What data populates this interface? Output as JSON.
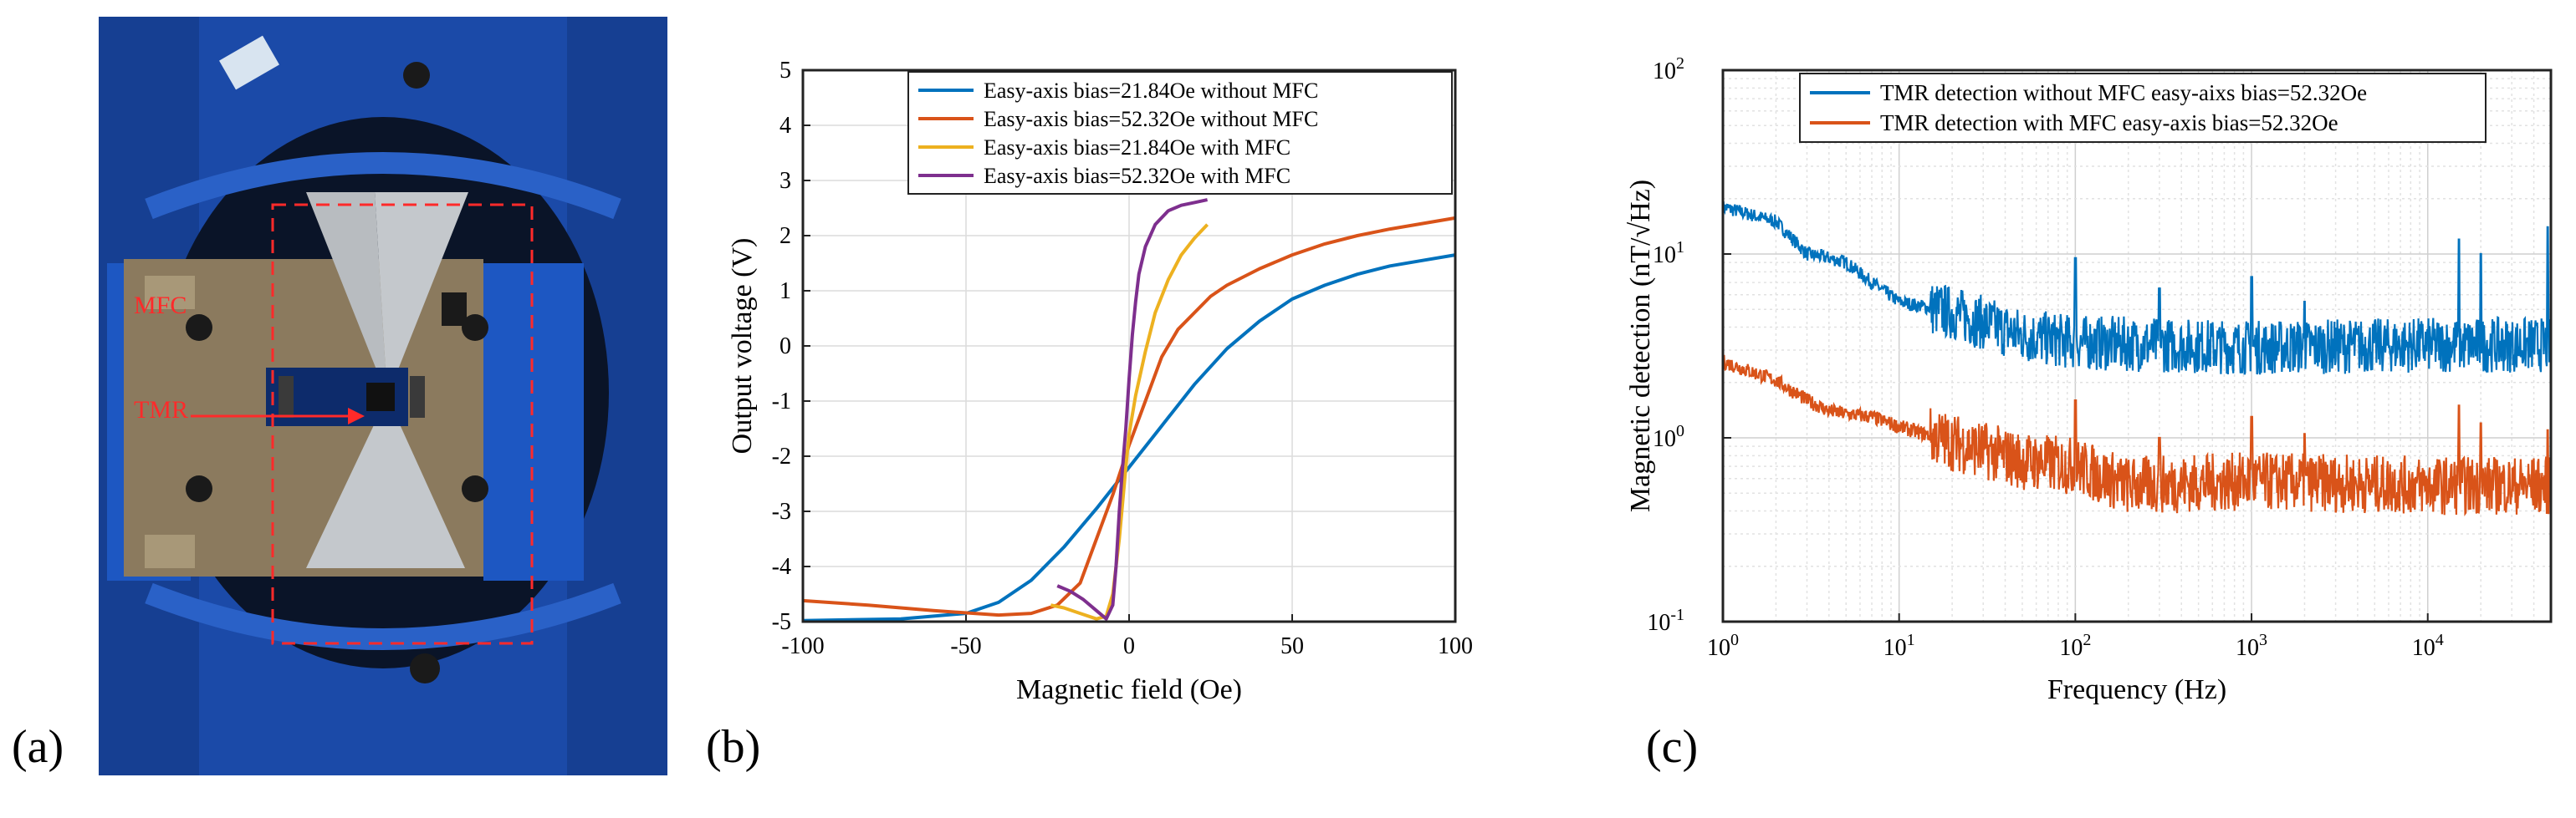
{
  "panels": {
    "a": {
      "label": "(a)",
      "callouts": [
        "MFC",
        "TMR"
      ]
    },
    "b": {
      "label": "(b)"
    },
    "c": {
      "label": "(c)"
    }
  },
  "colors": {
    "blue": "#0072BD",
    "orange": "#D95319",
    "yellow": "#EDB120",
    "purple": "#7E2F8E",
    "marker_red": "#ff2a2a"
  },
  "chart_data": [
    {
      "id": "b",
      "type": "line",
      "xlabel": "Magnetic field (Oe)",
      "ylabel": "Output voltage (V)",
      "xlim": [
        -100,
        100
      ],
      "ylim": [
        -5,
        5
      ],
      "xticks": [
        -100,
        -50,
        0,
        50,
        100
      ],
      "yticks": [
        -5,
        -4,
        -3,
        -2,
        -1,
        0,
        1,
        2,
        3,
        4,
        5
      ],
      "grid": true,
      "legend_position": "top-right",
      "series": [
        {
          "name": "Easy-axis bias=21.84Oe without MFC",
          "color": "#0072BD",
          "x": [
            -100,
            -70,
            -50,
            -40,
            -30,
            -20,
            -10,
            0,
            10,
            20,
            30,
            40,
            50,
            60,
            70,
            80,
            90,
            100
          ],
          "y": [
            -4.98,
            -4.95,
            -4.85,
            -4.65,
            -4.25,
            -3.65,
            -2.95,
            -2.2,
            -1.45,
            -0.7,
            -0.05,
            0.45,
            0.85,
            1.1,
            1.3,
            1.45,
            1.55,
            1.65
          ]
        },
        {
          "name": "Easy-axis bias=52.32Oe without MFC",
          "color": "#D95319",
          "x": [
            -100,
            -80,
            -60,
            -40,
            -30,
            -22,
            -15,
            -10,
            -5,
            0,
            5,
            10,
            15,
            20,
            25,
            30,
            40,
            50,
            60,
            70,
            80,
            90,
            100
          ],
          "y": [
            -4.62,
            -4.7,
            -4.8,
            -4.88,
            -4.85,
            -4.7,
            -4.3,
            -3.5,
            -2.7,
            -1.8,
            -1.0,
            -0.2,
            0.3,
            0.6,
            0.9,
            1.1,
            1.4,
            1.65,
            1.85,
            2.0,
            2.12,
            2.22,
            2.32
          ]
        },
        {
          "name": "Easy-axis bias=21.84Oe with MFC",
          "color": "#EDB120",
          "x": [
            -24,
            -20,
            -15,
            -10,
            -7,
            -5,
            -3,
            -1,
            0,
            2,
            5,
            8,
            12,
            16,
            20,
            24
          ],
          "y": [
            -4.7,
            -4.75,
            -4.85,
            -4.95,
            -4.9,
            -4.5,
            -3.5,
            -2.2,
            -1.6,
            -0.9,
            -0.1,
            0.6,
            1.2,
            1.65,
            1.95,
            2.2
          ]
        },
        {
          "name": "Easy-axis bias=52.32Oe with MFC",
          "color": "#7E2F8E",
          "x": [
            -22,
            -18,
            -14,
            -10,
            -7,
            -5,
            -4,
            -3,
            -2,
            -1,
            0,
            1,
            2,
            3,
            5,
            8,
            12,
            16,
            20,
            24
          ],
          "y": [
            -4.35,
            -4.45,
            -4.6,
            -4.8,
            -4.95,
            -4.7,
            -4.0,
            -3.0,
            -2.2,
            -1.5,
            -0.6,
            0.2,
            0.8,
            1.3,
            1.8,
            2.2,
            2.45,
            2.55,
            2.6,
            2.65
          ]
        }
      ]
    },
    {
      "id": "c",
      "type": "line",
      "xscale": "log",
      "yscale": "log",
      "xlabel": "Frequency (Hz)",
      "ylabel": "Magnetic detection (nT/√Hz)",
      "xlim": [
        1,
        50000
      ],
      "ylim": [
        0.1,
        100
      ],
      "xtick_exponents": [
        0,
        1,
        2,
        3,
        4
      ],
      "ytick_exponents": [
        -1,
        0,
        1,
        2
      ],
      "grid": true,
      "legend_position": "top-right",
      "series": [
        {
          "name": "TMR detection without MFC easy-aixs bias=52.32Oe",
          "color": "#0072BD",
          "base_points": [
            [
              1,
              18
            ],
            [
              2,
              15
            ],
            [
              3,
              10
            ],
            [
              4,
              9.5
            ],
            [
              5,
              9
            ],
            [
              7,
              7
            ],
            [
              10,
              5.5
            ],
            [
              20,
              4.8
            ],
            [
              50,
              3.6
            ],
            [
              100,
              3.3
            ],
            [
              1000,
              3.1
            ],
            [
              10000,
              3.2
            ],
            [
              50000,
              3.2
            ]
          ],
          "spikes": [
            [
              100,
              9.5
            ],
            [
              300,
              6.5
            ],
            [
              1000,
              7.5
            ],
            [
              2000,
              5.5
            ],
            [
              15000,
              12
            ],
            [
              20000,
              10
            ],
            [
              48000,
              14
            ]
          ],
          "noise_spread_decades": 0.15
        },
        {
          "name": "TMR detection with MFC easy-axis bias=52.32Oe",
          "color": "#D95319",
          "base_points": [
            [
              1,
              2.6
            ],
            [
              2,
              2.05
            ],
            [
              3,
              1.6
            ],
            [
              4,
              1.4
            ],
            [
              5,
              1.35
            ],
            [
              7,
              1.3
            ],
            [
              10,
              1.15
            ],
            [
              20,
              0.95
            ],
            [
              50,
              0.75
            ],
            [
              100,
              0.7
            ],
            [
              200,
              0.55
            ],
            [
              1000,
              0.58
            ],
            [
              10000,
              0.55
            ],
            [
              50000,
              0.55
            ]
          ],
          "spikes": [
            [
              100,
              1.6
            ],
            [
              300,
              1.0
            ],
            [
              1000,
              1.3
            ],
            [
              2000,
              1.05
            ],
            [
              15000,
              1.5
            ],
            [
              20000,
              1.2
            ],
            [
              48000,
              1.1
            ]
          ],
          "noise_spread_decades": 0.16
        }
      ]
    }
  ]
}
